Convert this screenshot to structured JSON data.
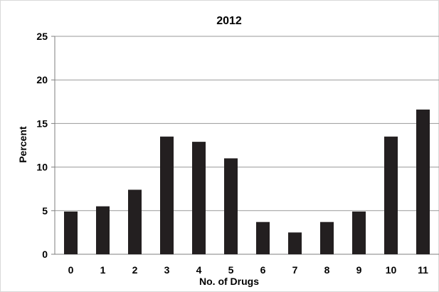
{
  "chart_data": {
    "type": "bar",
    "title": "2012",
    "xlabel": "No. of Drugs",
    "ylabel": "Percent",
    "categories": [
      "0",
      "1",
      "2",
      "3",
      "4",
      "5",
      "6",
      "7",
      "8",
      "9",
      "10",
      "11"
    ],
    "values": [
      4.9,
      5.5,
      7.4,
      13.5,
      12.9,
      11.0,
      3.7,
      2.5,
      3.7,
      4.9,
      13.5,
      16.6
    ],
    "ylim": [
      0,
      25
    ],
    "yticks": [
      "0",
      "5",
      "10",
      "15",
      "20",
      "25"
    ],
    "grid": true,
    "legend": "none",
    "colors": {
      "bar": "#231f20",
      "grid": "#9a9a9a"
    }
  }
}
